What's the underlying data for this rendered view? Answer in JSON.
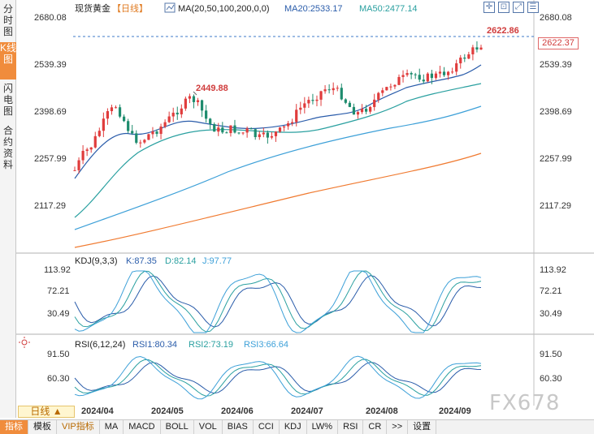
{
  "left_tabs": [
    {
      "label": "分时图",
      "active": false
    },
    {
      "label": "K线图",
      "active": true
    },
    {
      "label": "闪电图",
      "active": false
    },
    {
      "label": "合约资料",
      "active": false
    }
  ],
  "legend": {
    "title": "现货黄金",
    "period": "【日线】",
    "ma_label": "MA(20,50,100,200,0,0)",
    "ma20": "MA20:2533.17",
    "ma50": "MA50:2477.14"
  },
  "price_axis": [
    "2680.08",
    "2539.39",
    "2398.69",
    "2257.99",
    "2117.29"
  ],
  "high_label": "2449.88",
  "last_high_label": "2622.86",
  "current_price": "2622.37",
  "kdj": {
    "title": "KDJ(9,3,3)",
    "k": "K:87.35",
    "d": "D:82.14",
    "j": "J:97.77",
    "axis": [
      "113.92",
      "72.21",
      "30.49"
    ]
  },
  "rsi": {
    "title": "RSI(6,12,24)",
    "rsi1": "RSI1:80.34",
    "rsi2": "RSI2:73.19",
    "rsi3": "RSI3:66.64",
    "axis": [
      "91.50",
      "60.30"
    ]
  },
  "period_button": "日线 ▲",
  "dates": [
    "2024/04",
    "2024/05",
    "2024/06",
    "2024/07",
    "2024/08",
    "2024/09"
  ],
  "toolbar": [
    "指标",
    "模板",
    "VIP指标",
    "MA",
    "MACD",
    "BOLL",
    "VOL",
    "BIAS",
    "CCI",
    "KDJ",
    "LW%",
    "RSI",
    "CR",
    ">>",
    "设置"
  ],
  "watermark": "FX678",
  "colors": {
    "up": "#e03c3c",
    "down": "#1e8c6e",
    "ma20": "#2a5caa",
    "ma50": "#2aa0a0",
    "ma100": "#3da0d8",
    "ma200": "#f07a30"
  },
  "tool_icons": [
    "crosshair-icon",
    "zoom-icon",
    "fullscreen-icon",
    "list-icon"
  ]
}
